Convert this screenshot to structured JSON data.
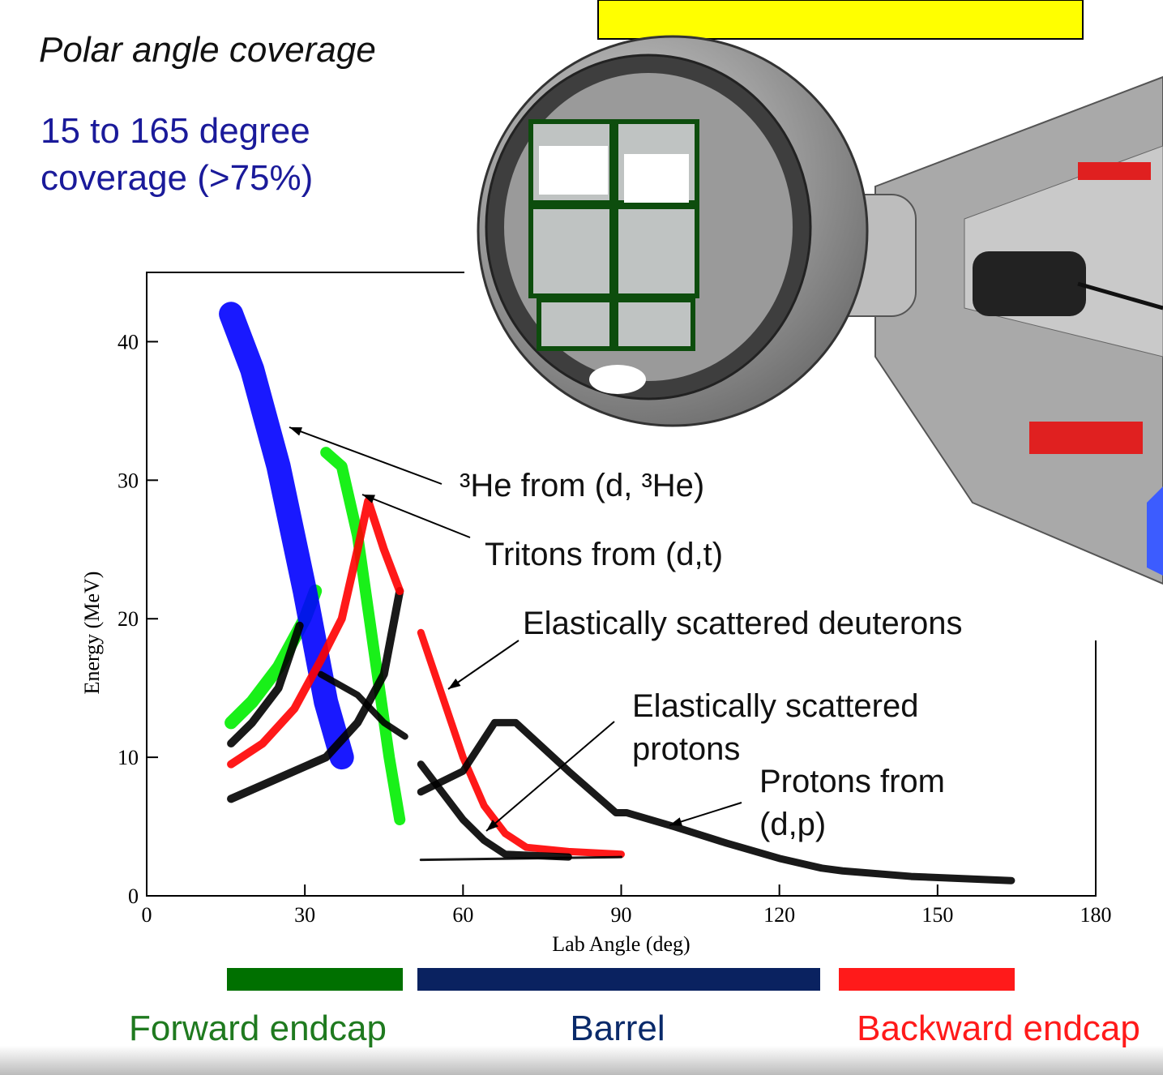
{
  "slide": {
    "heading": "Polar angle coverage",
    "coverage_lines": [
      "15 to 165 degree",
      "coverage (>75%)"
    ],
    "regions": [
      "Forward endcap",
      "Barrel",
      "Backward endcap"
    ]
  },
  "chart_data": {
    "type": "scatter",
    "xlabel": "Lab Angle (deg)",
    "ylabel": "Energy (MeV)",
    "xlim": [
      0,
      180
    ],
    "ylim": [
      0,
      45
    ],
    "xticks": [
      0,
      30,
      60,
      90,
      120,
      150,
      180
    ],
    "yticks": [
      0,
      10,
      20,
      30,
      40
    ],
    "annotations": [
      "³He from (d, ³He)",
      "Tritons from (d,t)",
      "Elastically scattered deuterons",
      "Elastically scattered",
      "protons",
      "Protons from",
      "(d,p)"
    ],
    "series": [
      {
        "color": "#00ee00",
        "x": [
          16,
          20,
          25,
          30,
          32
        ],
        "y": [
          12.5,
          14,
          16.5,
          20,
          22
        ]
      },
      {
        "color": "#00ee00",
        "x": [
          34,
          37,
          40,
          43,
          46,
          48
        ],
        "y": [
          32,
          31,
          26,
          18,
          10,
          5.5
        ]
      },
      {
        "color": "#0000ff",
        "x": [
          16,
          20,
          25,
          30,
          34,
          37
        ],
        "y": [
          42,
          38,
          31,
          22,
          14,
          10
        ]
      },
      {
        "color": "#000000",
        "x": [
          16,
          20,
          25,
          29
        ],
        "y": [
          11,
          12.5,
          15,
          19.5
        ]
      },
      {
        "color": "#000000",
        "x": [
          16,
          22,
          28,
          34,
          40,
          45,
          48
        ],
        "y": [
          7,
          8,
          9,
          10,
          12.5,
          16,
          22
        ]
      },
      {
        "color": "#000000",
        "x": [
          33,
          40,
          45,
          49
        ],
        "y": [
          16,
          14.5,
          12.5,
          11.5
        ]
      },
      {
        "color": "#ff0000",
        "x": [
          16,
          22,
          28,
          33,
          37,
          40,
          42,
          45,
          48
        ],
        "y": [
          9.5,
          11,
          13.5,
          17,
          20,
          25,
          28.5,
          25,
          22
        ]
      },
      {
        "color": "#ff0000",
        "x": [
          52,
          56,
          60,
          64,
          68,
          72,
          80,
          90
        ],
        "y": [
          19,
          14.5,
          10,
          6.5,
          4.5,
          3.5,
          3.2,
          3
        ]
      },
      {
        "color": "#000000",
        "x": [
          52,
          56,
          60,
          64,
          68,
          80
        ],
        "y": [
          9.5,
          7.5,
          5.5,
          4,
          3,
          2.8
        ]
      },
      {
        "color": "#000000",
        "x": [
          52,
          60,
          66,
          70,
          80,
          89,
          91,
          100,
          110,
          120,
          128,
          132,
          145,
          164
        ],
        "y": [
          7.5,
          9,
          12.5,
          12.5,
          9,
          6,
          6,
          5,
          3.8,
          2.7,
          2,
          1.8,
          1.4,
          1.1
        ]
      },
      {
        "color": "#000000",
        "x": [
          52,
          90
        ],
        "y": [
          2.6,
          2.8
        ]
      }
    ]
  }
}
